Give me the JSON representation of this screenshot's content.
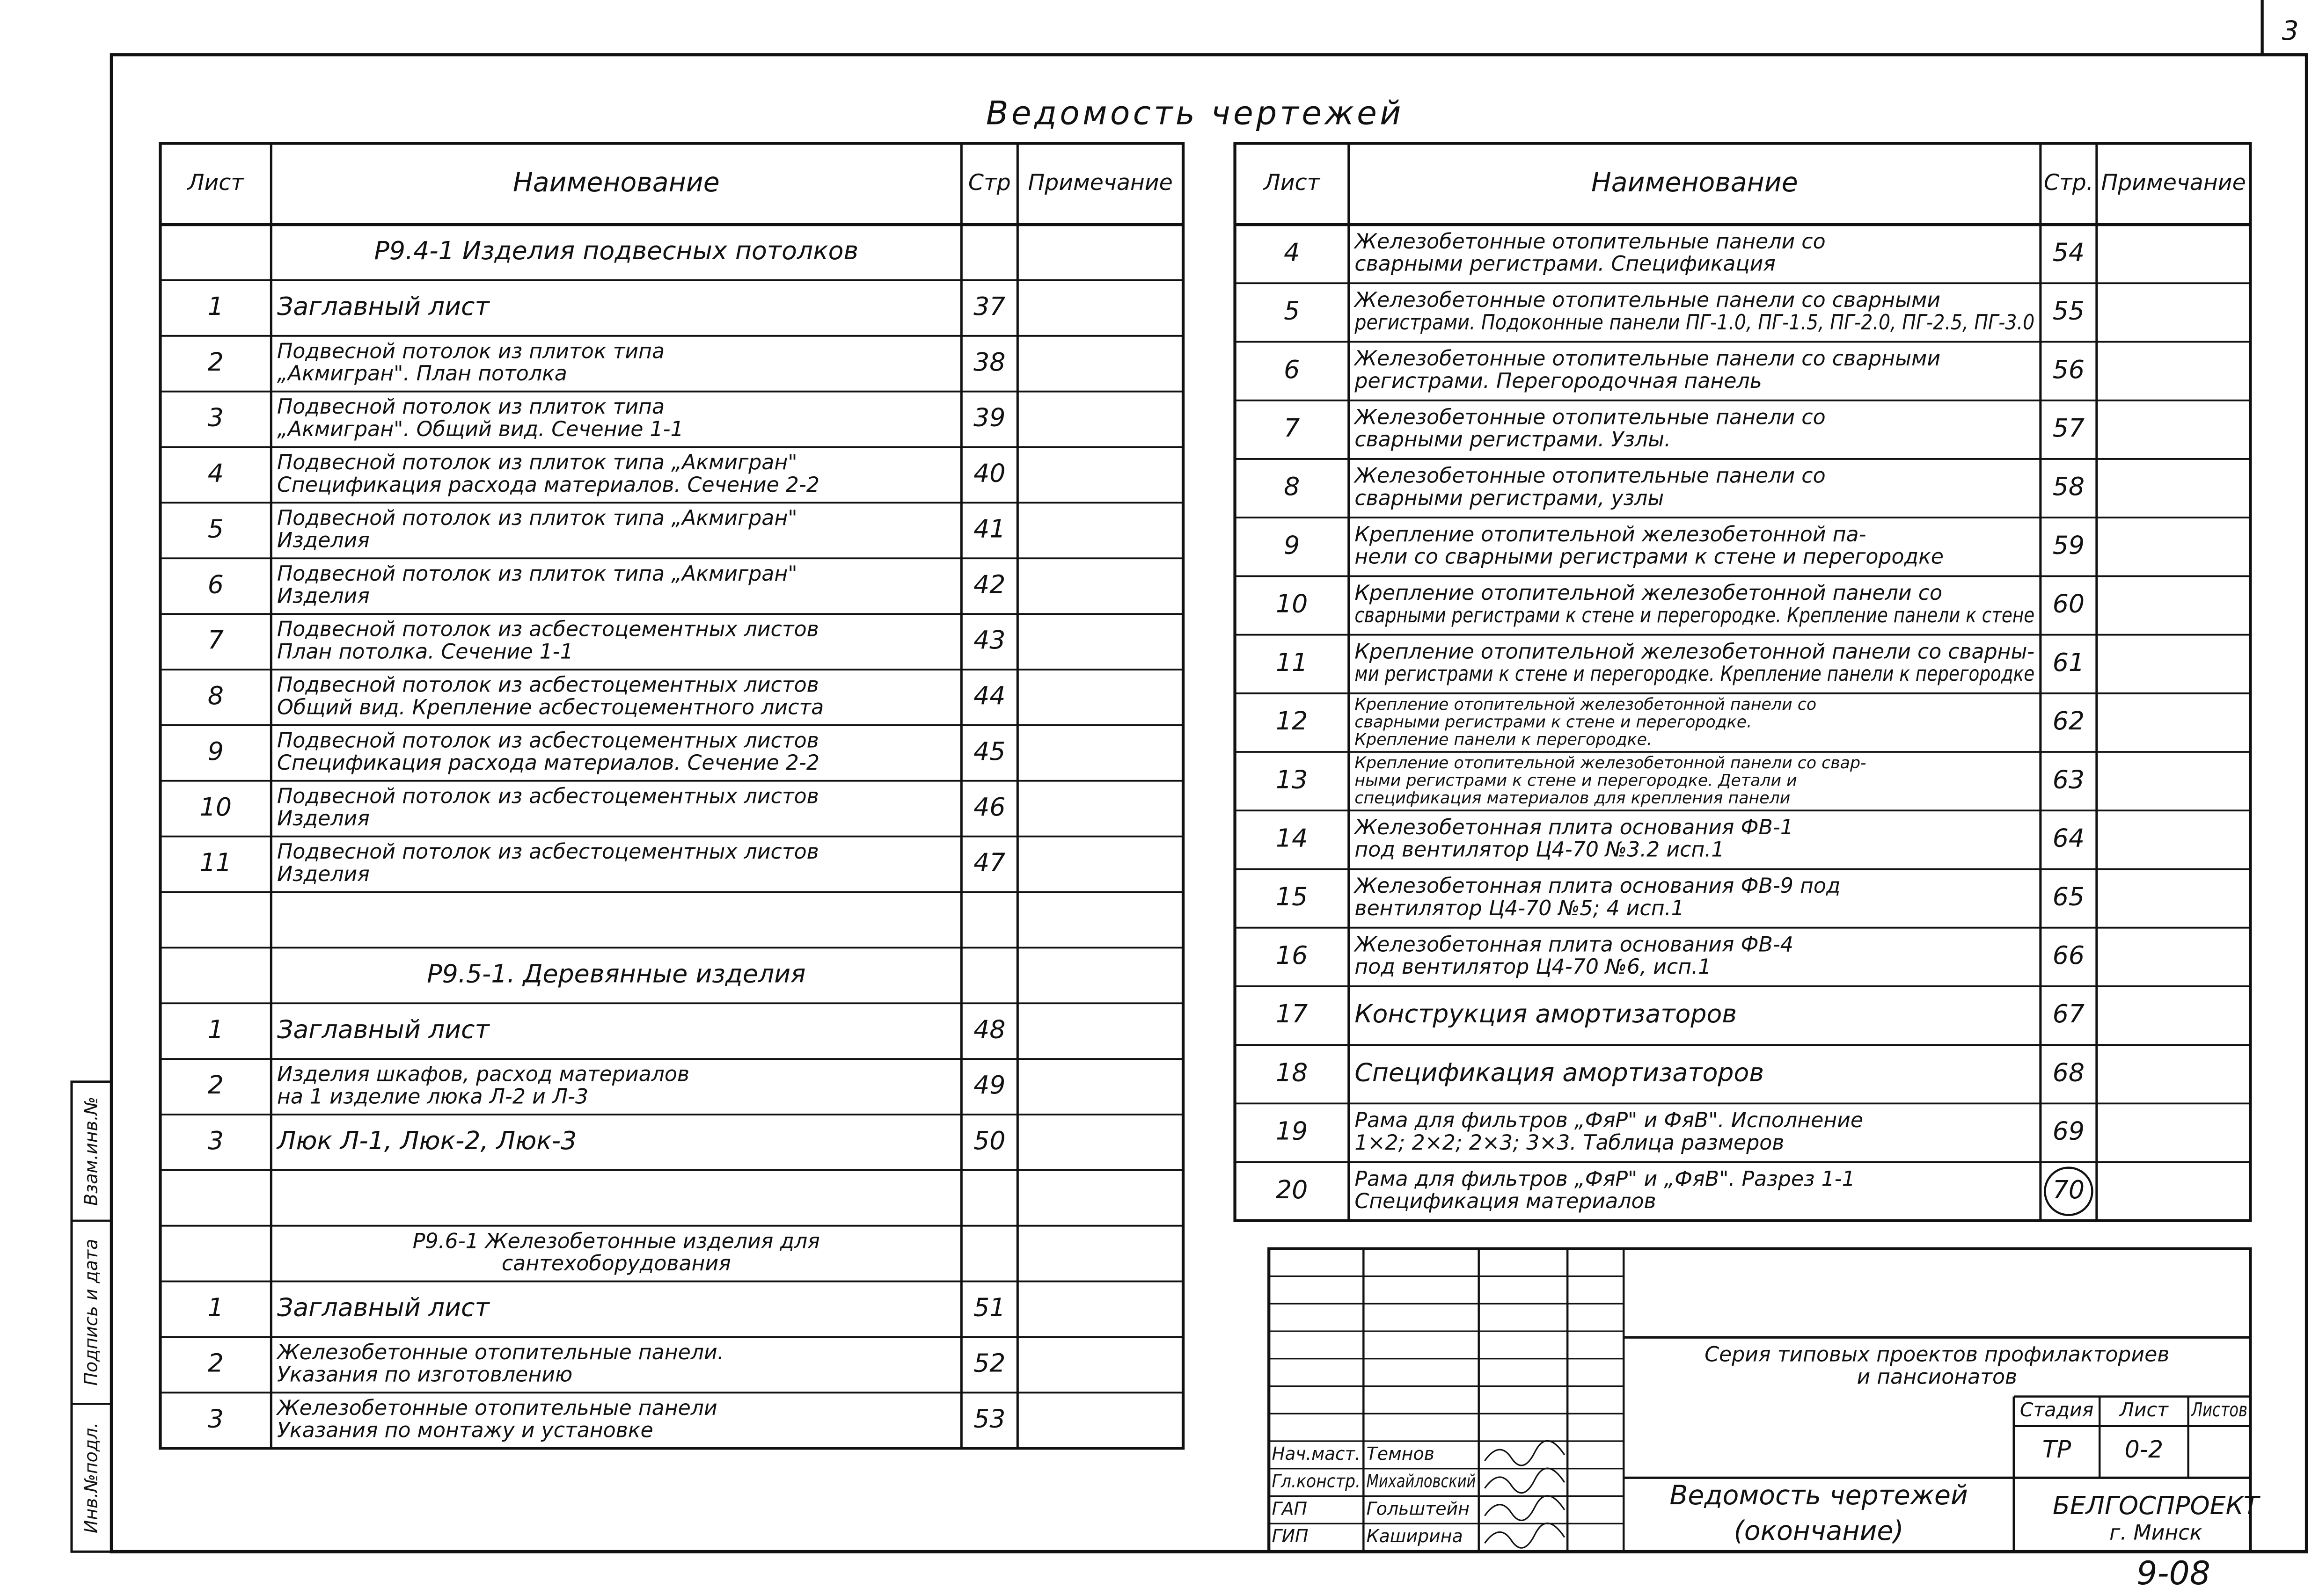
{
  "page_number": "3",
  "title": "Ведомость чертежей",
  "left_table": {
    "headers": [
      "Лист",
      "Наименование",
      "Стр",
      "Примечание"
    ],
    "groups": [
      {
        "title": [
          "Р9.4-1 Изделия подвесных потолков"
        ],
        "rows": [
          {
            "sheet": 1,
            "name": [
              "Заглавный лист"
            ],
            "page": 37
          },
          {
            "sheet": 2,
            "name": [
              "Подвесной потолок из плиток типа",
              "„Акмигран\". План потолка"
            ],
            "page": 38
          },
          {
            "sheet": 3,
            "name": [
              "Подвесной потолок из плиток типа",
              "„Акмигран\". Общий вид. Сечение 1-1"
            ],
            "page": 39
          },
          {
            "sheet": 4,
            "name": [
              "Подвесной потолок из плиток типа „Акмигран\"",
              "Спецификация расхода материалов. Сечение 2-2"
            ],
            "page": 40
          },
          {
            "sheet": 5,
            "name": [
              "Подвесной потолок из плиток типа „Акмигран\"",
              "Изделия"
            ],
            "page": 41
          },
          {
            "sheet": 6,
            "name": [
              "Подвесной потолок из плиток типа „Акмигран\"",
              "Изделия"
            ],
            "page": 42
          },
          {
            "sheet": 7,
            "name": [
              "Подвесной потолок из асбестоцементных листов",
              "План потолка. Сечение 1-1"
            ],
            "page": 43
          },
          {
            "sheet": 8,
            "name": [
              "Подвесной потолок из асбестоцементных листов",
              "Общий вид. Крепление асбестоцементного листа"
            ],
            "page": 44
          },
          {
            "sheet": 9,
            "name": [
              "Подвесной потолок из асбестоцементных листов",
              "Спецификация расхода материалов. Сечение 2-2"
            ],
            "page": 45
          },
          {
            "sheet": 10,
            "name": [
              "Подвесной потолок из асбестоцементных листов",
              "Изделия"
            ],
            "page": 46
          },
          {
            "sheet": 11,
            "name": [
              "Подвесной потолок из асбестоцементных листов",
              "Изделия"
            ],
            "page": 47
          }
        ]
      },
      {
        "title": [
          "Р9.5-1. Деревянные изделия"
        ],
        "rows": [
          {
            "sheet": 1,
            "name": [
              "Заглавный лист"
            ],
            "page": 48
          },
          {
            "sheet": 2,
            "name": [
              "Изделия шкафов, расход материалов",
              "на 1 изделие люка Л-2 и Л-3"
            ],
            "page": 49
          },
          {
            "sheet": 3,
            "name": [
              "Люк Л-1, Люк-2, Люк-3"
            ],
            "page": 50
          }
        ]
      },
      {
        "title": [
          "Р9.6-1 Железобетонные изделия для",
          "сантехоборудования"
        ],
        "rows": [
          {
            "sheet": 1,
            "name": [
              "Заглавный лист"
            ],
            "page": 51
          },
          {
            "sheet": 2,
            "name": [
              "Железобетонные отопительные панели.",
              "Указания по изготовлению"
            ],
            "page": 52
          },
          {
            "sheet": 3,
            "name": [
              "Железобетонные отопительные панели",
              "Указания по монтажу и установке"
            ],
            "page": 53
          }
        ]
      }
    ]
  },
  "right_table": {
    "headers": [
      "Лист",
      "Наименование",
      "Стр.",
      "Примечание"
    ],
    "rows": [
      {
        "sheet": 4,
        "name": [
          "Железобетонные отопительные панели со",
          "сварными регистрами. Спецификация"
        ],
        "page": 54
      },
      {
        "sheet": 5,
        "name": [
          "Железобетонные отопительные панели со сварными",
          "регистрами. Подоконные панели ПГ-1.0, ПГ-1.5, ПГ-2.0, ПГ-2.5, ПГ-3.0"
        ],
        "page": 55
      },
      {
        "sheet": 6,
        "name": [
          "Железобетонные отопительные панели со сварными",
          "регистрами. Перегородочная панель"
        ],
        "page": 56
      },
      {
        "sheet": 7,
        "name": [
          "Железобетонные отопительные панели со",
          "сварными регистрами. Узлы."
        ],
        "page": 57
      },
      {
        "sheet": 8,
        "name": [
          "Железобетонные отопительные панели со",
          "сварными регистрами, узлы"
        ],
        "page": 58
      },
      {
        "sheet": 9,
        "name": [
          "Крепление отопительной железобетонной па-",
          "нели со сварными регистрами к стене и перегородке"
        ],
        "page": 59
      },
      {
        "sheet": 10,
        "name": [
          "Крепление отопительной железобетонной панели со",
          "сварными регистрами к стене и перегородке. Крепление панели к стене"
        ],
        "page": 60
      },
      {
        "sheet": 11,
        "name": [
          "Крепление отопительной железобетонной панели со сварны-",
          "ми регистрами к стене и перегородке. Крепление панели к перегородке"
        ],
        "page": 61
      },
      {
        "sheet": 12,
        "name": [
          "Крепление отопительной железобетонной панели со",
          "сварными регистрами к стене и перегородке.",
          "Крепление панели к перегородке."
        ],
        "page": 62
      },
      {
        "sheet": 13,
        "name": [
          "Крепление отопительной железобетонной панели со свар-",
          "ными регистрами к стене и перегородке. Детали и",
          "спецификация материалов для крепления панели"
        ],
        "page": 63
      },
      {
        "sheet": 14,
        "name": [
          "Железобетонная плита основания ФВ-1",
          "под вентилятор Ц4-70 №3.2 исп.1"
        ],
        "page": 64
      },
      {
        "sheet": 15,
        "name": [
          "Железобетонная плита основания ФВ-9 под",
          "вентилятор Ц4-70 №5; 4 исп.1"
        ],
        "page": 65
      },
      {
        "sheet": 16,
        "name": [
          "Железобетонная плита основания ФВ-4",
          "под вентилятор Ц4-70 №6, исп.1"
        ],
        "page": 66
      },
      {
        "sheet": 17,
        "name": [
          "Конструкция амортизаторов"
        ],
        "page": 67
      },
      {
        "sheet": 18,
        "name": [
          "Спецификация амортизаторов"
        ],
        "page": 68
      },
      {
        "sheet": 19,
        "name": [
          "Рама для фильтров „ФяР\" и ФяВ\". Исполнение",
          "1×2; 2×2; 2×3; 3×3. Таблица размеров"
        ],
        "page": 69
      },
      {
        "sheet": 20,
        "name": [
          "Рама для фильтров „ФяР\" и „ФяВ\". Разрез 1-1",
          "Спецификация материалов"
        ],
        "page": 70
      }
    ]
  },
  "title_block": {
    "series": [
      "Серия типовых проектов профилакториев",
      "и пансионатов"
    ],
    "stage_headers": [
      "Стадия",
      "Лист",
      "Листов"
    ],
    "stage": "ТР",
    "sheet": "0-2",
    "sheet_name": [
      "Ведомость чертежей",
      "(окончание)"
    ],
    "organization": [
      "БЕЛГОСПРОЕКТ",
      "г. Минск"
    ],
    "signatures": [
      {
        "role": "Нач.маст.",
        "name": "Темнов"
      },
      {
        "role": "Гл.констр.",
        "name": "Михайловский"
      },
      {
        "role": "ГАП",
        "name": "Гольштейн"
      },
      {
        "role": "ГИП",
        "name": "Каширина"
      }
    ],
    "code": "9-08"
  },
  "margin_stamp": [
    "Инв.№подл.",
    "Подпись и дата",
    "Взам.инв.№"
  ]
}
